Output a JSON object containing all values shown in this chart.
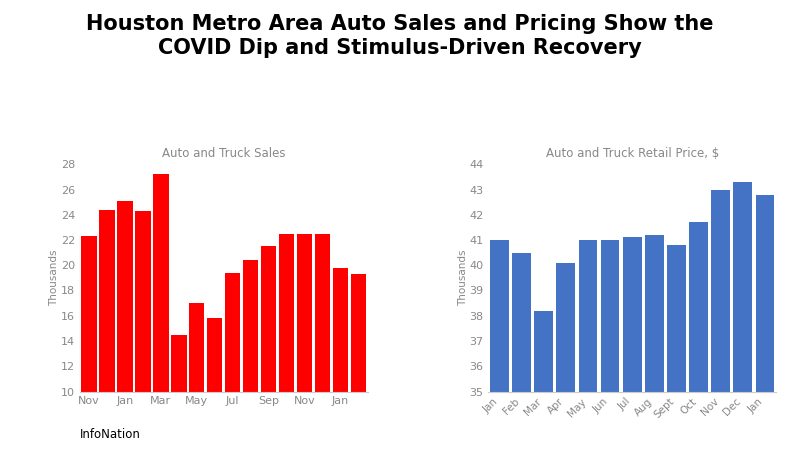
{
  "title": "Houston Metro Area Auto Sales and Pricing Show the\nCOVID Dip and Stimulus-Driven Recovery",
  "title_fontsize": 15,
  "title_fontweight": "bold",
  "background_color": "#ffffff",
  "footer_text": "InfoNation",
  "sales_title": "Auto and Truck Sales",
  "sales_ylabel": "Thousands",
  "sales_values": [
    22.3,
    24.4,
    25.1,
    24.3,
    27.2,
    14.5,
    17.0,
    15.8,
    19.4,
    20.4,
    21.5,
    22.5,
    22.5,
    22.5,
    19.8,
    19.3
  ],
  "sales_xtick_positions": [
    0,
    2,
    4,
    6,
    8,
    10,
    12,
    14
  ],
  "sales_xtick_labels": [
    "Nov",
    "Jan",
    "Mar",
    "May",
    "Jul",
    "Sep",
    "Nov",
    "Jan"
  ],
  "sales_color": "#ff0000",
  "sales_ylim": [
    10,
    28
  ],
  "sales_yticks": [
    10,
    12,
    14,
    16,
    18,
    20,
    22,
    24,
    26,
    28
  ],
  "price_title": "Auto and Truck Retail Price, $",
  "price_ylabel": "Thousands",
  "price_categories": [
    "Jan",
    "Feb",
    "Mar",
    "Apr",
    "May",
    "Jun",
    "Jul",
    "Aug",
    "Sept",
    "Oct",
    "Nov",
    "Dec",
    "Jan"
  ],
  "price_values": [
    41.0,
    40.5,
    38.2,
    40.1,
    41.0,
    41.0,
    41.1,
    41.2,
    40.8,
    41.7,
    43.0,
    43.3,
    42.8
  ],
  "price_color": "#4472c4",
  "price_ylim": [
    35,
    44
  ],
  "price_yticks": [
    35,
    36,
    37,
    38,
    39,
    40,
    41,
    42,
    43,
    44
  ]
}
